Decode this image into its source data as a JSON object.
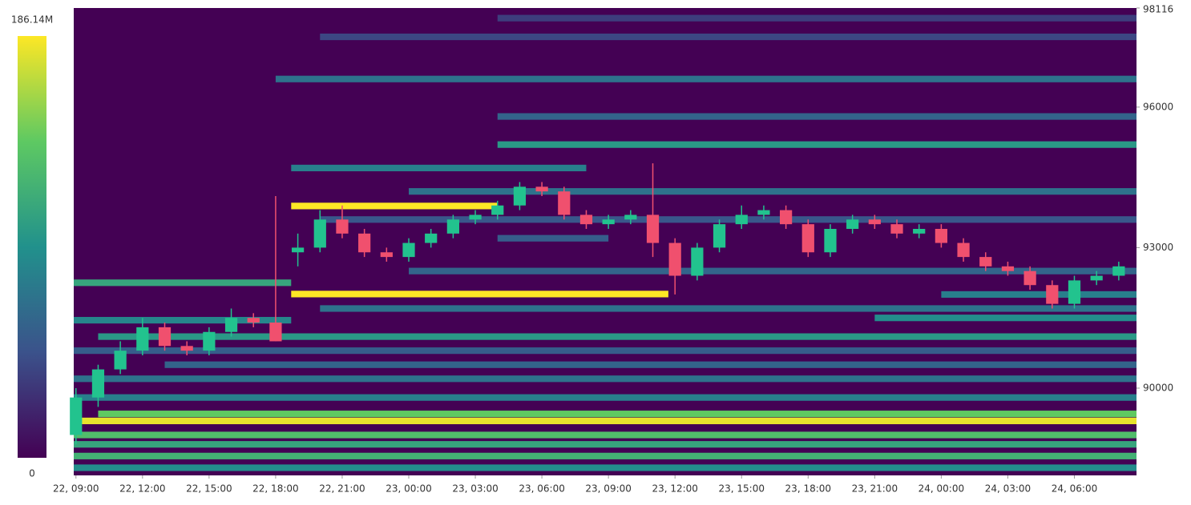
{
  "chart_data": {
    "type": "liquidation-heatmap",
    "xlim": [
      8.9,
      56.8
    ],
    "ylim": [
      88137,
      98116
    ],
    "xticks": [
      {
        "value": 9,
        "label": "22, 09:00"
      },
      {
        "value": 12,
        "label": "22, 12:00"
      },
      {
        "value": 15,
        "label": "22, 15:00"
      },
      {
        "value": 18,
        "label": "22, 18:00"
      },
      {
        "value": 21,
        "label": "22, 21:00"
      },
      {
        "value": 24,
        "label": "23, 00:00"
      },
      {
        "value": 27,
        "label": "23, 03:00"
      },
      {
        "value": 30,
        "label": "23, 06:00"
      },
      {
        "value": 33,
        "label": "23, 09:00"
      },
      {
        "value": 36,
        "label": "23, 12:00"
      },
      {
        "value": 39,
        "label": "23, 15:00"
      },
      {
        "value": 42,
        "label": "23, 18:00"
      },
      {
        "value": 45,
        "label": "23, 21:00"
      },
      {
        "value": 48,
        "label": "24, 00:00"
      },
      {
        "value": 51,
        "label": "24, 03:00"
      },
      {
        "value": 54,
        "label": "24, 06:00"
      }
    ],
    "yticks": [
      90000,
      93000,
      96000,
      98116
    ],
    "colorbar": {
      "lim": [
        0,
        186.14
      ],
      "ticks": [
        0,
        {
          "value": 186.14,
          "label": "186.14M"
        }
      ]
    },
    "heatmap": {
      "price": [
        88300,
        88550,
        88800,
        89000,
        89300,
        89450,
        89800,
        90200,
        90500,
        90800,
        91100,
        91450,
        91700,
        92009,
        92250,
        92500,
        93200,
        93600,
        93889,
        94200,
        94700,
        95200,
        95800,
        96600,
        97500,
        97900,
        92000,
        91500
      ],
      "start": [
        8.9,
        8.9,
        8.9,
        8.9,
        8.9,
        10,
        8.9,
        8.9,
        13,
        8.9,
        10,
        8.9,
        20,
        18.7,
        8.9,
        24,
        28,
        20,
        18.7,
        24,
        18.7,
        28,
        28,
        18,
        20,
        28,
        48,
        45
      ],
      "end": [
        56.8,
        56.8,
        56.8,
        56.8,
        56.8,
        56.8,
        56.8,
        56.8,
        56.8,
        56.8,
        56.8,
        18.7,
        56.8,
        35.7,
        18.7,
        56.8,
        33,
        56.8,
        28,
        56.8,
        32,
        56.8,
        56.8,
        56.8,
        56.8,
        56.8,
        56.8,
        56.8
      ],
      "values": [
        90,
        120,
        110,
        130,
        180,
        140,
        80,
        70,
        60,
        55,
        100,
        85,
        70,
        186,
        110,
        60,
        55,
        50,
        186,
        70,
        80,
        100,
        60,
        70,
        40,
        35,
        80,
        90
      ]
    },
    "candles": {
      "x": [
        9,
        10,
        11,
        12,
        13,
        14,
        15,
        16,
        17,
        18,
        19,
        20,
        21,
        22,
        23,
        24,
        25,
        26,
        27,
        28,
        29,
        30,
        31,
        32,
        33,
        34,
        35,
        36,
        37,
        38,
        39,
        40,
        41,
        42,
        43,
        44,
        45,
        46,
        47,
        48,
        49,
        50,
        51,
        52,
        53,
        54,
        55,
        56
      ],
      "open": [
        89000,
        89800,
        90400,
        90800,
        91300,
        90900,
        90800,
        91200,
        91500,
        91400,
        92900,
        93000,
        93600,
        93300,
        92900,
        92800,
        93100,
        93300,
        93600,
        93700,
        93900,
        94300,
        94200,
        93700,
        93500,
        93600,
        93700,
        93100,
        92400,
        93000,
        93500,
        93700,
        93800,
        93500,
        92900,
        93400,
        93600,
        93500,
        93300,
        93400,
        93100,
        92800,
        92600,
        92500,
        92200,
        91800,
        92300,
        92400
      ],
      "high": [
        90000,
        90500,
        91000,
        91500,
        91400,
        91000,
        91300,
        91700,
        91600,
        94100,
        93300,
        93800,
        93900,
        93400,
        93000,
        93200,
        93400,
        93700,
        93800,
        94000,
        94400,
        94400,
        94300,
        93800,
        93700,
        93800,
        94800,
        93200,
        93100,
        93600,
        93900,
        93900,
        93900,
        93600,
        93500,
        93700,
        93700,
        93600,
        93500,
        93500,
        93200,
        92900,
        92700,
        92600,
        92300,
        92400,
        92500,
        92700
      ],
      "low": [
        88800,
        89600,
        90300,
        90700,
        90800,
        90700,
        90700,
        91100,
        91300,
        91000,
        92600,
        92900,
        93200,
        92800,
        92700,
        92700,
        93000,
        93200,
        93500,
        93600,
        93800,
        94100,
        93600,
        93400,
        93400,
        93500,
        92800,
        92000,
        92300,
        92900,
        93400,
        93600,
        93400,
        92800,
        92800,
        93300,
        93400,
        93200,
        93200,
        93000,
        92700,
        92500,
        92400,
        92100,
        91700,
        91700,
        92200,
        92300
      ],
      "close": [
        89800,
        90400,
        90800,
        91300,
        90900,
        90800,
        91200,
        91500,
        91400,
        91000,
        93000,
        93600,
        93300,
        92900,
        92800,
        93100,
        93300,
        93600,
        93700,
        93900,
        94300,
        94200,
        93700,
        93500,
        93600,
        93700,
        93100,
        92400,
        93000,
        93500,
        93700,
        93800,
        93500,
        92900,
        93400,
        93600,
        93500,
        93300,
        93400,
        93100,
        92800,
        92600,
        92500,
        92200,
        91800,
        92300,
        92400,
        92600
      ]
    }
  }
}
